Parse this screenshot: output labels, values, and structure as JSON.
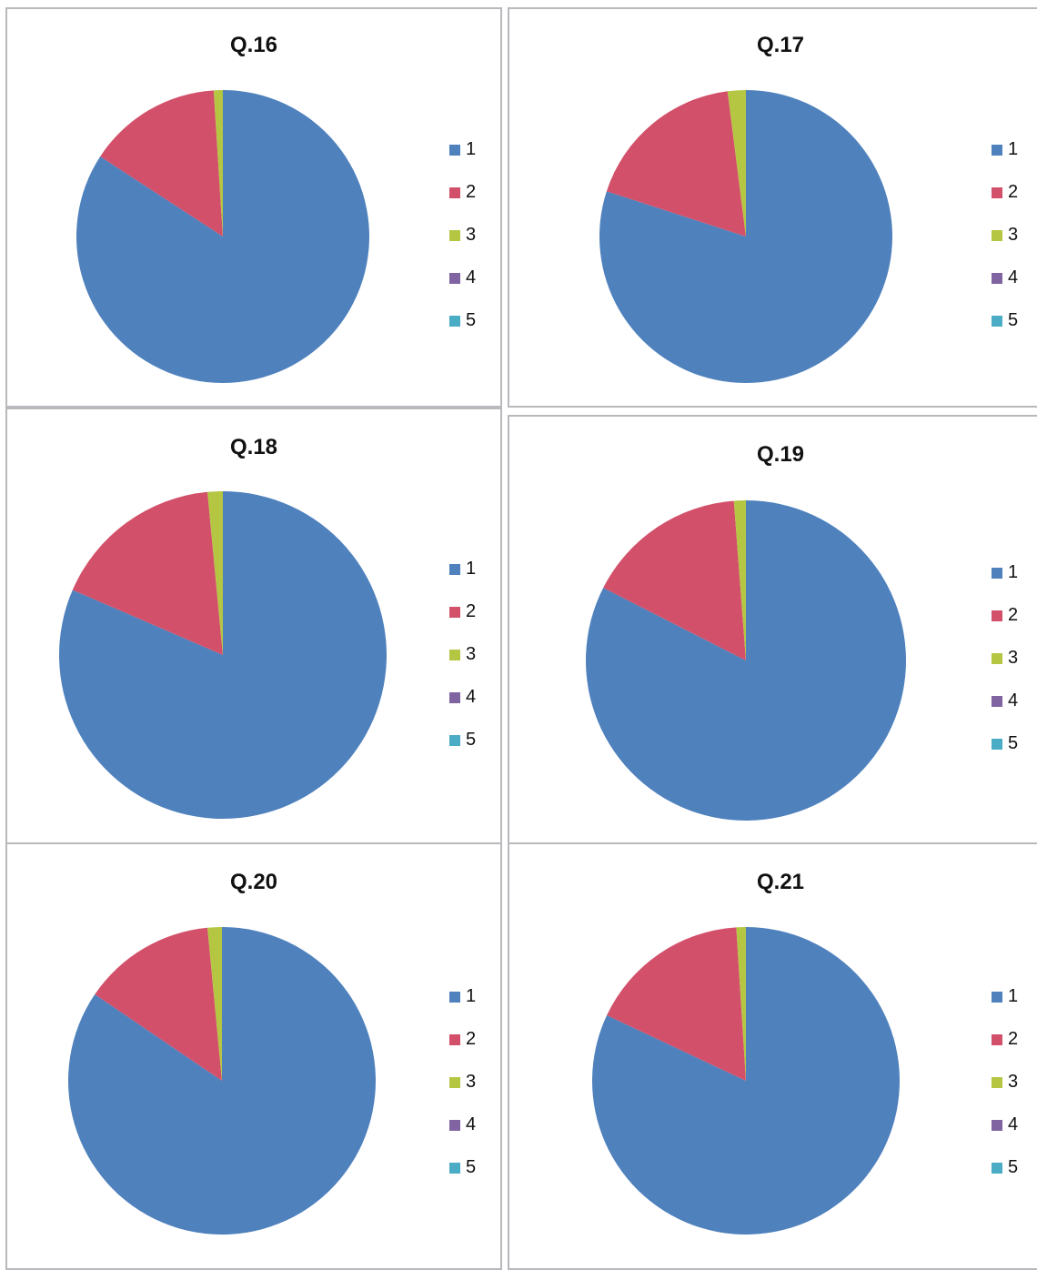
{
  "charts": [
    {
      "title": "Q.16"
    },
    {
      "title": "Q.17"
    },
    {
      "title": "Q.18"
    },
    {
      "title": "Q.19"
    },
    {
      "title": "Q.20"
    },
    {
      "title": "Q.21"
    }
  ],
  "colors": {
    "1": "#4f81bd",
    "2": "#d2506a",
    "3": "#b5c642",
    "4": "#8064a2",
    "5": "#4bacc6",
    "border": "#b9b9bd"
  },
  "chart_data": [
    {
      "type": "pie",
      "title": "Q.16",
      "categories": [
        "1",
        "2",
        "3",
        "4",
        "5"
      ],
      "values": [
        84.2,
        14.8,
        1.0,
        0,
        0
      ],
      "legend": "right"
    },
    {
      "type": "pie",
      "title": "Q.17",
      "categories": [
        "1",
        "2",
        "3",
        "4",
        "5"
      ],
      "values": [
        80.0,
        18.0,
        2.0,
        0,
        0
      ],
      "legend": "right"
    },
    {
      "type": "pie",
      "title": "Q.18",
      "categories": [
        "1",
        "2",
        "3",
        "4",
        "5"
      ],
      "values": [
        81.5,
        17.0,
        1.5,
        0,
        0
      ],
      "legend": "right"
    },
    {
      "type": "pie",
      "title": "Q.19",
      "categories": [
        "1",
        "2",
        "3",
        "4",
        "5"
      ],
      "values": [
        82.5,
        16.3,
        1.2,
        0,
        0
      ],
      "legend": "right"
    },
    {
      "type": "pie",
      "title": "Q.20",
      "categories": [
        "1",
        "2",
        "3",
        "4",
        "5"
      ],
      "values": [
        84.5,
        14.0,
        1.5,
        0,
        0
      ],
      "legend": "right"
    },
    {
      "type": "pie",
      "title": "Q.21",
      "categories": [
        "1",
        "2",
        "3",
        "4",
        "5"
      ],
      "values": [
        82.0,
        17.0,
        1.0,
        0,
        0
      ],
      "legend": "right"
    }
  ]
}
